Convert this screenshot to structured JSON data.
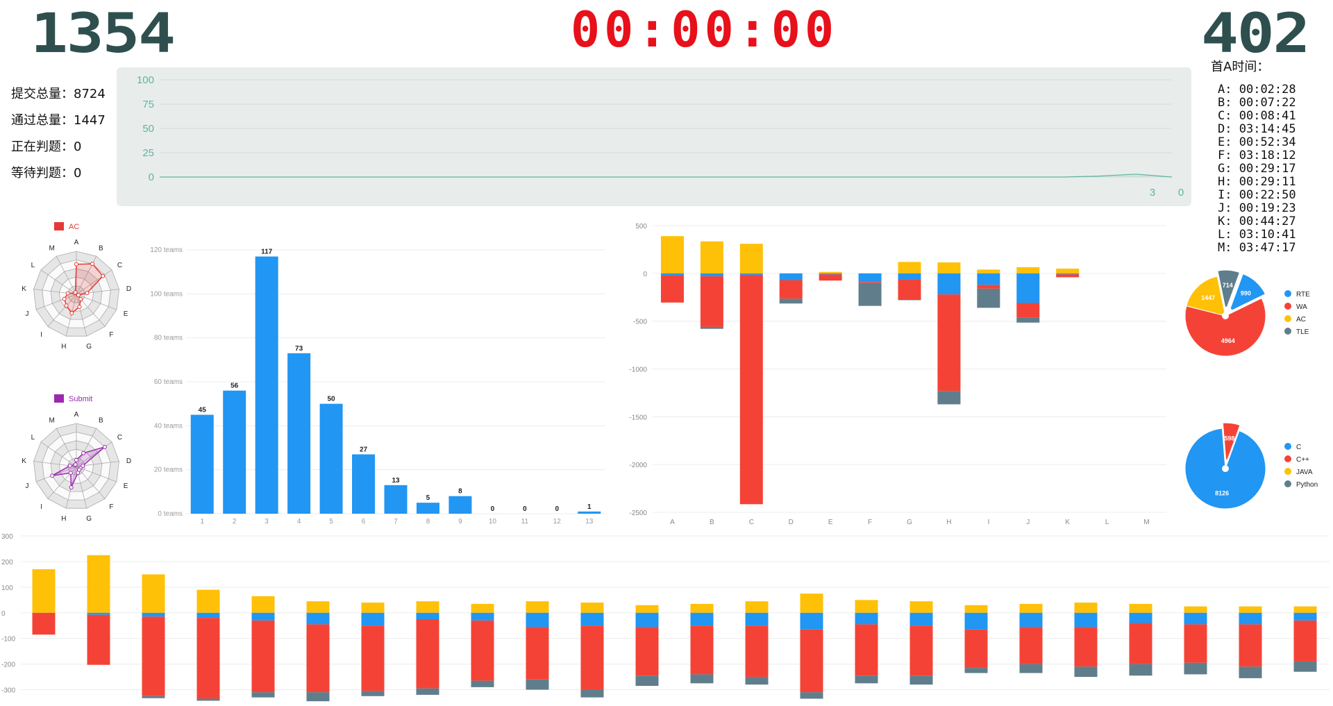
{
  "header": {
    "left_number": "1354",
    "clock": "00:00:00",
    "right_number": "402"
  },
  "stats": [
    {
      "label": "提交总量：",
      "value": "8724"
    },
    {
      "label": "通过总量：",
      "value": "1447"
    },
    {
      "label": "正在判题：",
      "value": "0"
    },
    {
      "label": "等待判题：",
      "value": "0"
    }
  ],
  "first_ac": {
    "title": "首A时间：",
    "rows": [
      {
        "p": "A",
        "t": "00:02:28"
      },
      {
        "p": "B",
        "t": "00:07:22"
      },
      {
        "p": "C",
        "t": "00:08:41"
      },
      {
        "p": "D",
        "t": "03:14:45"
      },
      {
        "p": "E",
        "t": "00:52:34"
      },
      {
        "p": "F",
        "t": "03:18:12"
      },
      {
        "p": "G",
        "t": "00:29:17"
      },
      {
        "p": "H",
        "t": "00:29:11"
      },
      {
        "p": "I",
        "t": "00:22:50"
      },
      {
        "p": "J",
        "t": "00:19:23"
      },
      {
        "p": "K",
        "t": "00:44:27"
      },
      {
        "p": "L",
        "t": "03:10:41"
      },
      {
        "p": "M",
        "t": "03:47:17"
      }
    ]
  },
  "colors": {
    "rte": "#2196f3",
    "wa": "#f44336",
    "ac": "#ffc107",
    "tle": "#607d8b",
    "area": "#5fb3a0",
    "radar_ac": "#e53935",
    "radar_submit": "#9c27b0",
    "bar": "#2196f3"
  },
  "chart_data": [
    {
      "type": "area",
      "id": "submission-timeline",
      "ylim": [
        0,
        100
      ],
      "yticks": [
        "100",
        "75",
        "50",
        "25",
        "0"
      ],
      "end_labels": [
        "3",
        "0"
      ],
      "values": [
        0,
        0,
        0,
        0,
        0,
        0,
        0,
        0,
        0,
        0,
        0,
        0,
        0,
        0,
        0,
        0,
        0,
        0,
        0,
        0,
        0,
        0,
        0,
        0,
        0,
        0,
        1,
        3,
        0
      ]
    },
    {
      "type": "radar",
      "id": "radar-ac",
      "legend": "AC",
      "axes": [
        "A",
        "B",
        "C",
        "D",
        "E",
        "F",
        "G",
        "H",
        "I",
        "J",
        "K",
        "L",
        "M"
      ],
      "values": [
        0.7,
        0.8,
        0.75,
        0.25,
        0.05,
        0.15,
        0.3,
        0.45,
        0.35,
        0.3,
        0.2,
        0.05,
        0.05
      ]
    },
    {
      "type": "radar",
      "id": "radar-submit",
      "legend": "Submit",
      "axes": [
        "A",
        "B",
        "C",
        "D",
        "E",
        "F",
        "G",
        "H",
        "I",
        "J",
        "K",
        "L",
        "M"
      ],
      "values": [
        0.15,
        0.35,
        0.8,
        0.15,
        0.1,
        0.1,
        0.15,
        0.5,
        0.2,
        0.6,
        0.15,
        0.05,
        0.05
      ]
    },
    {
      "type": "bar",
      "id": "solved-distribution",
      "categories": [
        "1",
        "2",
        "3",
        "4",
        "5",
        "6",
        "7",
        "8",
        "9",
        "10",
        "11",
        "12",
        "13"
      ],
      "values": [
        45,
        56,
        117,
        73,
        50,
        27,
        13,
        5,
        8,
        0,
        0,
        0,
        1
      ],
      "ylim": [
        0,
        120
      ],
      "yticks": [
        "0 teams",
        "20 teams",
        "40 teams",
        "60 teams",
        "80 teams",
        "100 teams",
        "120 teams"
      ]
    },
    {
      "type": "bar",
      "id": "problem-results",
      "categories": [
        "A",
        "B",
        "C",
        "D",
        "E",
        "F",
        "G",
        "H",
        "I",
        "J",
        "K",
        "L",
        "M"
      ],
      "ylim": [
        -2500,
        500
      ],
      "yticks": [
        "500",
        "0",
        "-500",
        "-1000",
        "-1500",
        "-2000",
        "-2500"
      ],
      "series": [
        {
          "name": "AC",
          "values": [
            390,
            335,
            310,
            0,
            15,
            0,
            120,
            115,
            40,
            65,
            50,
            0,
            0
          ]
        },
        {
          "name": "RTE",
          "values": [
            -20,
            -30,
            -15,
            -70,
            -10,
            -90,
            -60,
            -220,
            -120,
            -310,
            -10,
            0,
            0
          ]
        },
        {
          "name": "WA",
          "values": [
            -285,
            -530,
            -2400,
            -195,
            -65,
            -10,
            -210,
            -1010,
            -40,
            -150,
            -30,
            0,
            0
          ]
        },
        {
          "name": "TLE",
          "values": [
            0,
            -20,
            0,
            -50,
            0,
            -240,
            -10,
            -140,
            -200,
            -55,
            0,
            0,
            0
          ]
        }
      ]
    },
    {
      "type": "pie",
      "id": "result-pie",
      "labels": [
        "RTE",
        "WA",
        "AC",
        "TLE"
      ],
      "values": [
        990,
        4964,
        1447,
        714
      ]
    },
    {
      "type": "pie",
      "id": "language-pie",
      "labels": [
        "C",
        "C++",
        "JAVA",
        "Python"
      ],
      "values": [
        8126,
        598,
        0,
        0
      ]
    },
    {
      "type": "bar",
      "id": "team-results",
      "ylim": [
        -350,
        300
      ],
      "yticks": [
        "300",
        "200",
        "100",
        "0",
        "-100",
        "-200",
        "-300"
      ],
      "series": [
        {
          "name": "AC",
          "values": [
            170,
            225,
            150,
            90,
            65,
            45,
            40,
            45,
            35,
            45,
            40,
            30,
            35,
            45,
            75,
            50,
            45,
            30,
            35,
            40,
            35,
            25,
            25,
            25
          ]
        },
        {
          "name": "RTE",
          "values": [
            0,
            -8,
            -15,
            -20,
            -30,
            -45,
            -50,
            -25,
            -30,
            -55,
            -50,
            -55,
            -50,
            -50,
            -65,
            -45,
            -50,
            -65,
            -55,
            -55,
            -40,
            -45,
            -45,
            -30
          ]
        },
        {
          "name": "WA",
          "values": [
            -85,
            -195,
            -310,
            -315,
            -280,
            -265,
            -255,
            -270,
            -235,
            -205,
            -250,
            -190,
            -190,
            -200,
            -245,
            -200,
            -195,
            -150,
            -145,
            -155,
            -160,
            -150,
            -165,
            -160
          ]
        },
        {
          "name": "TLE",
          "values": [
            0,
            0,
            -8,
            -8,
            -20,
            -35,
            -20,
            -25,
            -25,
            -40,
            -30,
            -40,
            -35,
            -30,
            -25,
            -30,
            -35,
            -20,
            -35,
            -40,
            -45,
            -45,
            -45,
            -40
          ]
        }
      ]
    }
  ],
  "legends": {
    "result": [
      {
        "key": "rte",
        "label": "RTE"
      },
      {
        "key": "wa",
        "label": "WA"
      },
      {
        "key": "ac",
        "label": "AC"
      },
      {
        "key": "tle",
        "label": "TLE"
      }
    ],
    "language": [
      {
        "key": "rte",
        "label": "C"
      },
      {
        "key": "wa",
        "label": "C++"
      },
      {
        "key": "ac",
        "label": "JAVA"
      },
      {
        "key": "tle",
        "label": "Python"
      }
    ]
  },
  "pie_labels": {
    "result": [
      "990",
      "4964",
      "1447",
      "714"
    ],
    "language": [
      "8126",
      "598"
    ]
  }
}
